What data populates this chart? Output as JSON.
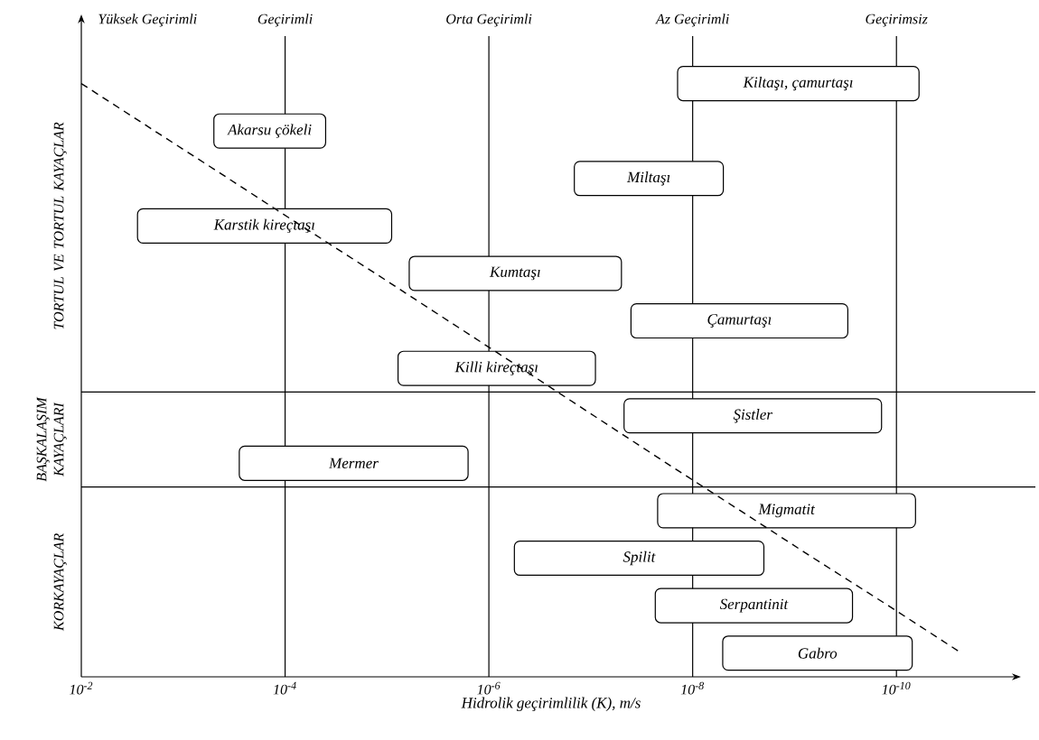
{
  "chart_data": {
    "type": "bar",
    "orientation": "horizontal",
    "log": "x",
    "categories": [
      "Kiltaşı, çamurtaşı",
      "Akarsu çökeli",
      "Miltaşı",
      "Karstik kireçtaşı",
      "Kumtaşı",
      "Çamurtaşı",
      "Killi kireçtaşı",
      "Şistler",
      "Mermer",
      "Migmatit",
      "Spilit",
      "Serpantinit",
      "Gabro"
    ],
    "series": [
      {
        "color": "#ffffff",
        "base": [
          6e-11,
          4e-05,
          5e-09,
          9e-06,
          5e-08,
          3e-10,
          9e-08,
          1.4e-10,
          1.6e-06,
          6.5e-11,
          2e-09,
          2.7e-10,
          7e-11
        ],
        "values": [
          1.4e-08,
          0.00046,
          1.4e-07,
          0.0028,
          6e-06,
          4e-08,
          7.7e-06,
          4.7e-08,
          0.00028,
          2.2e-08,
          5.6e-07,
          2.3e-08,
          5e-09
        ]
      },
      {
        "type": "line",
        "color": "#000000",
        "line_style": "dashed",
        "values": [
          0.01,
          0.0019,
          0.00036,
          6.9e-05,
          1.3e-05,
          2.5e-06,
          4.8e-07,
          9.3e-08,
          1.8e-08,
          3.4e-09,
          6.5e-10,
          1.2e-10,
          2.3e-11
        ]
      }
    ],
    "xlim": [
      0.01,
      6e-12
    ],
    "xticks": [
      {
        "value": 0.01,
        "label": "10$^{-2}$"
      },
      {
        "value": 0.0001,
        "label": "10$^{-4}$"
      },
      {
        "value": 1e-06,
        "label": "10$^{-6}$"
      },
      {
        "value": 1e-08,
        "label": "10$^{-8}$"
      },
      {
        "value": 1e-10,
        "label": "10$^{-10}$"
      }
    ],
    "xlabel": "Hidrolik geçirimlilik (K), m/s",
    "ref_lines": [
      {
        "axis": "x",
        "value": 0.0001,
        "label": "Geçirimli"
      },
      {
        "axis": "x",
        "value": 1e-06,
        "label": "Orta Geçirimli"
      },
      {
        "axis": "x",
        "value": 1e-08,
        "label": "Az Geçirimli"
      },
      {
        "axis": "x",
        "value": 1e-10,
        "label": "Geçirimsiz"
      }
    ],
    "annotations": [
      "Yüksek Geçirimli",
      "TORTUL VE TORTUL KAYAÇLAR",
      "BAŞKALAŞIM KAYAÇLARI",
      "KORKAYAÇLAR"
    ]
  }
}
